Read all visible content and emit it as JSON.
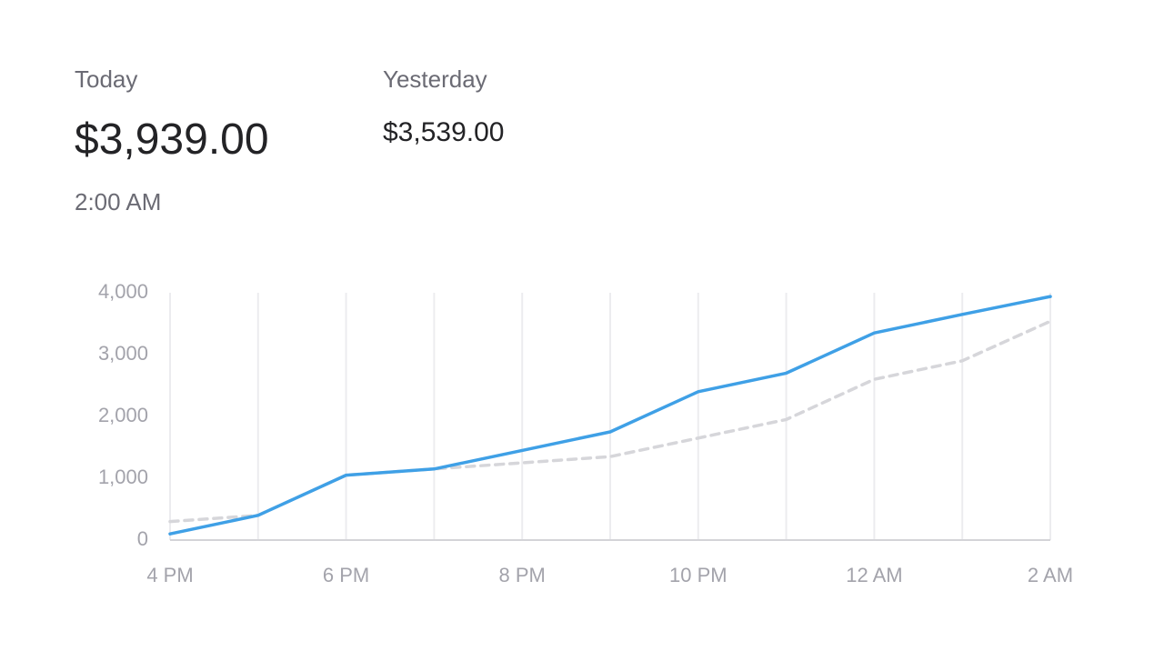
{
  "summary": {
    "current_amount": "$3,939.00",
    "current_time": "2:00 AM",
    "previous_amount": "$3,539.00"
  },
  "chart_data": {
    "type": "line",
    "categories": [
      "4 PM",
      null,
      "6 PM",
      null,
      "8 PM",
      null,
      "10 PM",
      null,
      "12 AM",
      null,
      "2 AM"
    ],
    "series": [
      {
        "name": "Today",
        "color": "#3fa0e6",
        "dashed": false,
        "values": [
          100,
          400,
          1050,
          1150,
          1450,
          1750,
          2400,
          2700,
          3350,
          3650,
          3939
        ]
      },
      {
        "name": "Yesterday",
        "color": "#d6d6da",
        "dashed": true,
        "values": [
          300,
          400,
          1050,
          1150,
          1250,
          1350,
          1650,
          1950,
          2600,
          2900,
          3539
        ]
      }
    ],
    "ylim": [
      0,
      4000
    ],
    "yticks": [
      0,
      {
        "value": 1000,
        "label": "1,000"
      },
      {
        "value": 2000,
        "label": "2,000"
      },
      {
        "value": 3000,
        "label": "3,000"
      },
      {
        "value": 4000,
        "label": "4,000"
      }
    ],
    "grid": "vertical"
  }
}
